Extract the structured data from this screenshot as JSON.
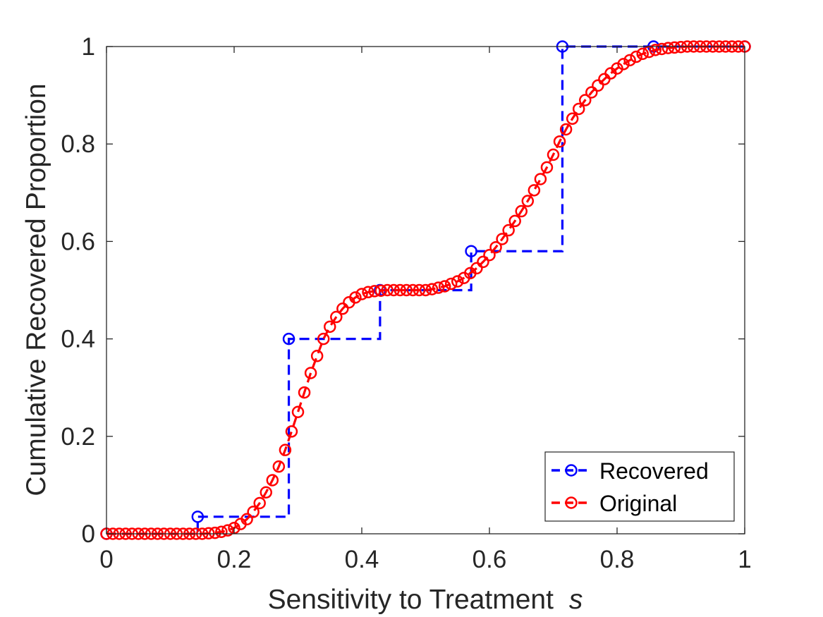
{
  "chart_data": {
    "type": "line",
    "xlabel": "Sensitivity to Treatment",
    "xlabel_symbol": "s",
    "ylabel": "Cumulative Recovered Proportion",
    "xlim": [
      0,
      1
    ],
    "ylim": [
      0,
      1
    ],
    "x_ticks": [
      0,
      0.2,
      0.4,
      0.6,
      0.8,
      1
    ],
    "y_ticks": [
      0,
      0.2,
      0.4,
      0.6,
      0.8,
      1
    ],
    "x_tick_labels": [
      "0",
      "0.2",
      "0.4",
      "0.6",
      "0.8",
      "1"
    ],
    "y_tick_labels": [
      "0",
      "0.2",
      "0.4",
      "0.6",
      "0.8",
      "1"
    ],
    "grid": false,
    "legend_position": "bottom-right",
    "series": [
      {
        "name": "Recovered",
        "color": "#0000ff",
        "line_style": "dashed",
        "marker": "circle",
        "draw": "stairs",
        "x": [
          0,
          0.1429,
          0.2857,
          0.4286,
          0.5714,
          0.7143,
          0.8571,
          1
        ],
        "y": [
          0,
          0.035,
          0.4,
          0.5,
          0.58,
          1,
          1,
          1
        ]
      },
      {
        "name": "Original",
        "color": "#ff0000",
        "line_style": "dashed",
        "marker": "circle",
        "draw": "line",
        "x": [
          0,
          0.01,
          0.02,
          0.03,
          0.04,
          0.05,
          0.06,
          0.07,
          0.08,
          0.09,
          0.1,
          0.11,
          0.12,
          0.13,
          0.14,
          0.15,
          0.16,
          0.17,
          0.18,
          0.19,
          0.2,
          0.21,
          0.22,
          0.23,
          0.24,
          0.25,
          0.26,
          0.27,
          0.28,
          0.29,
          0.3,
          0.31,
          0.32,
          0.33,
          0.34,
          0.35,
          0.36,
          0.37,
          0.38,
          0.39,
          0.4,
          0.41,
          0.42,
          0.43,
          0.44,
          0.45,
          0.46,
          0.47,
          0.48,
          0.49,
          0.5,
          0.51,
          0.52,
          0.53,
          0.54,
          0.55,
          0.56,
          0.57,
          0.58,
          0.59,
          0.6,
          0.61,
          0.62,
          0.63,
          0.64,
          0.65,
          0.66,
          0.67,
          0.68,
          0.69,
          0.7,
          0.71,
          0.72,
          0.73,
          0.74,
          0.75,
          0.76,
          0.77,
          0.78,
          0.79,
          0.8,
          0.81,
          0.82,
          0.83,
          0.84,
          0.85,
          0.86,
          0.87,
          0.88,
          0.89,
          0.9,
          0.91,
          0.92,
          0.93,
          0.94,
          0.95,
          0.96,
          0.97,
          0.98,
          0.99,
          1
        ],
        "y": [
          0,
          0,
          0,
          0,
          0,
          0,
          0,
          0,
          0,
          0,
          0,
          0,
          0,
          0,
          0,
          0,
          0.001,
          0.002,
          0.004,
          0.007,
          0.012,
          0.02,
          0.03,
          0.045,
          0.063,
          0.085,
          0.11,
          0.138,
          0.172,
          0.21,
          0.25,
          0.29,
          0.33,
          0.365,
          0.4,
          0.425,
          0.445,
          0.462,
          0.475,
          0.485,
          0.492,
          0.496,
          0.498,
          0.499,
          0.5,
          0.5,
          0.5,
          0.5,
          0.5,
          0.5,
          0.5,
          0.502,
          0.505,
          0.508,
          0.513,
          0.518,
          0.525,
          0.535,
          0.545,
          0.558,
          0.572,
          0.588,
          0.605,
          0.623,
          0.642,
          0.662,
          0.683,
          0.705,
          0.728,
          0.752,
          0.778,
          0.805,
          0.83,
          0.852,
          0.872,
          0.89,
          0.906,
          0.92,
          0.933,
          0.945,
          0.955,
          0.964,
          0.972,
          0.979,
          0.985,
          0.989,
          0.993,
          0.995,
          0.997,
          0.998,
          0.999,
          1,
          1,
          1,
          1,
          1,
          1,
          1,
          1,
          1,
          1
        ]
      }
    ]
  }
}
